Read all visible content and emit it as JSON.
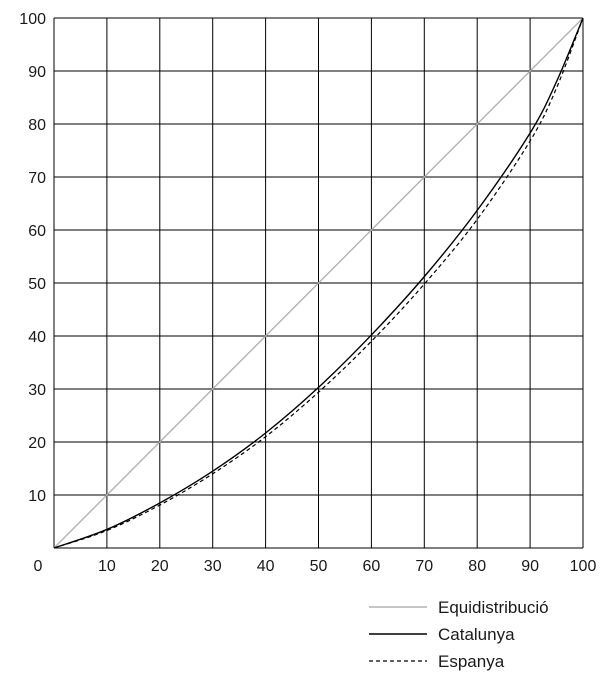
{
  "chart_data": {
    "type": "line",
    "title": "",
    "xlabel": "",
    "ylabel": "",
    "xlim": [
      0,
      100
    ],
    "ylim": [
      0,
      100
    ],
    "x_ticks": [
      0,
      10,
      20,
      30,
      40,
      50,
      60,
      70,
      80,
      90,
      100
    ],
    "y_ticks": [
      10,
      20,
      30,
      40,
      50,
      60,
      70,
      80,
      90,
      100
    ],
    "grid": true,
    "legend_position": "bottom-right",
    "series": [
      {
        "name": "Equidistribució",
        "style": "solid",
        "color": "#b3b3b3",
        "x": [
          0,
          10,
          20,
          30,
          40,
          50,
          60,
          70,
          80,
          90,
          100
        ],
        "y": [
          0,
          10,
          20,
          30,
          40,
          50,
          60,
          70,
          80,
          90,
          100
        ]
      },
      {
        "name": "Catalunya",
        "style": "solid",
        "color": "#000000",
        "x": [
          0,
          10,
          20,
          30,
          40,
          50,
          60,
          70,
          80,
          90,
          95,
          100
        ],
        "y": [
          0,
          3.5,
          8.5,
          14.5,
          21.7,
          30.3,
          40.2,
          51.2,
          63.7,
          78.3,
          88.0,
          100
        ]
      },
      {
        "name": "Espanya",
        "style": "dashed",
        "color": "#000000",
        "x": [
          0,
          10,
          20,
          30,
          40,
          50,
          60,
          70,
          80,
          90,
          95,
          100
        ],
        "y": [
          0,
          3.3,
          8.1,
          14.0,
          21.0,
          29.4,
          39.0,
          49.8,
          62.0,
          76.8,
          86.8,
          100
        ]
      }
    ]
  }
}
